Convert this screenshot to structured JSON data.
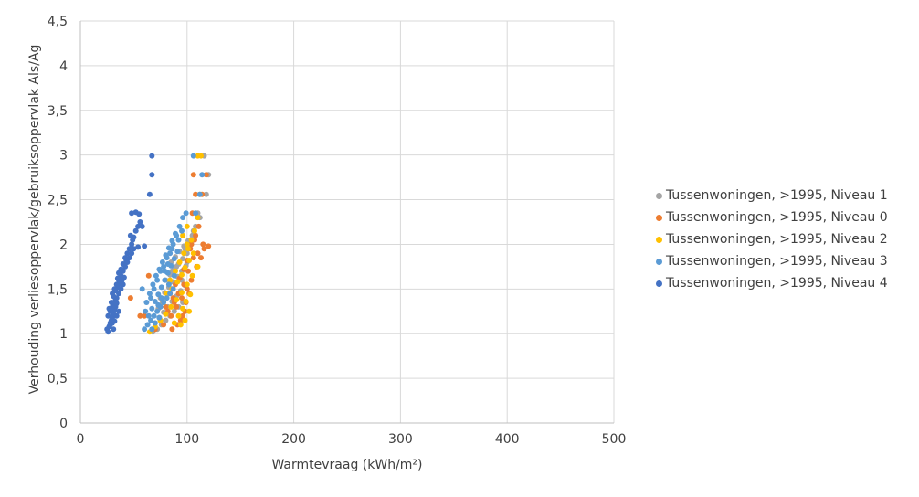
{
  "chart_data": {
    "type": "scatter",
    "xlabel": "Warmtevraag (kWh/m²)",
    "ylabel": "Verhouding verliesoppervlak/gebruiksoppervlak Als/Ag",
    "xlim": [
      0,
      500
    ],
    "ylim": [
      0,
      4.5
    ],
    "xticks": [
      "0",
      "100",
      "200",
      "300",
      "400",
      "500"
    ],
    "yticks": [
      "0",
      "0,5",
      "1",
      "1,5",
      "2",
      "2,5",
      "3",
      "3,5",
      "4",
      "4,5"
    ],
    "grid": true,
    "legend_position": "right",
    "series": [
      {
        "name": "Tussenwoningen, >1995, Niveau 1",
        "color": "#a5a5a5",
        "points": [
          [
            68,
            1.02
          ],
          [
            72,
            1.05
          ],
          [
            76,
            1.1
          ],
          [
            80,
            1.15
          ],
          [
            84,
            1.2
          ],
          [
            88,
            1.25
          ],
          [
            92,
            1.3
          ],
          [
            96,
            1.35
          ],
          [
            70,
            1.12
          ],
          [
            74,
            1.18
          ],
          [
            78,
            1.24
          ],
          [
            82,
            1.3
          ],
          [
            86,
            1.36
          ],
          [
            90,
            1.42
          ],
          [
            94,
            1.48
          ],
          [
            98,
            1.54
          ],
          [
            75,
            1.4
          ],
          [
            79,
            1.46
          ],
          [
            83,
            1.52
          ],
          [
            87,
            1.58
          ],
          [
            91,
            1.64
          ],
          [
            95,
            1.7
          ],
          [
            99,
            1.76
          ],
          [
            80,
            1.6
          ],
          [
            84,
            1.66
          ],
          [
            88,
            1.72
          ],
          [
            92,
            1.78
          ],
          [
            96,
            1.84
          ],
          [
            100,
            1.9
          ],
          [
            85,
            1.8
          ],
          [
            89,
            1.86
          ],
          [
            93,
            1.92
          ],
          [
            97,
            1.98
          ],
          [
            101,
            2.04
          ],
          [
            105,
            2.1
          ],
          [
            108,
            2.2
          ],
          [
            110,
            2.35
          ],
          [
            118,
            2.56
          ],
          [
            120,
            2.78
          ],
          [
            116,
            2.99
          ],
          [
            103,
            2.05
          ],
          [
            98,
            1.95
          ],
          [
            106,
            2.15
          ],
          [
            112,
            2.3
          ],
          [
            90,
            1.75
          ],
          [
            86,
            1.7
          ],
          [
            77,
            1.35
          ],
          [
            73,
            1.28
          ],
          [
            100,
            1.8
          ],
          [
            95,
            1.6
          ]
        ]
      },
      {
        "name": "Tussenwoningen, >1995, Niveau 0",
        "color": "#ed7d31",
        "points": [
          [
            56,
            1.2
          ],
          [
            60,
            1.2
          ],
          [
            47,
            1.4
          ],
          [
            64,
            1.65
          ],
          [
            70,
            1.05
          ],
          [
            78,
            1.1
          ],
          [
            85,
            1.2
          ],
          [
            90,
            1.3
          ],
          [
            95,
            1.4
          ],
          [
            100,
            1.5
          ],
          [
            104,
            1.6
          ],
          [
            82,
            1.25
          ],
          [
            88,
            1.35
          ],
          [
            92,
            1.45
          ],
          [
            97,
            1.55
          ],
          [
            101,
            1.7
          ],
          [
            106,
            1.85
          ],
          [
            110,
            1.9
          ],
          [
            115,
            2.0
          ],
          [
            103,
            1.95
          ],
          [
            108,
            2.1
          ],
          [
            111,
            2.2
          ],
          [
            105,
            2.35
          ],
          [
            108,
            2.56
          ],
          [
            106,
            2.78
          ],
          [
            118,
            2.78
          ],
          [
            114,
            2.56
          ],
          [
            120,
            1.98
          ],
          [
            94,
            1.15
          ],
          [
            98,
            1.25
          ],
          [
            99,
            1.35
          ],
          [
            102,
            1.45
          ],
          [
            86,
            1.05
          ],
          [
            91,
            1.1
          ],
          [
            96,
            1.2
          ],
          [
            84,
            1.45
          ],
          [
            89,
            1.55
          ],
          [
            93,
            1.62
          ],
          [
            97,
            1.72
          ],
          [
            100,
            1.82
          ],
          [
            104,
            2.0
          ],
          [
            107,
            2.05
          ],
          [
            75,
            1.15
          ],
          [
            80,
            1.3
          ],
          [
            87,
            1.4
          ],
          [
            113,
            1.85
          ],
          [
            109,
            1.75
          ],
          [
            116,
            1.95
          ]
        ]
      },
      {
        "name": "Tussenwoningen, >1995, Niveau 2",
        "color": "#ffc000",
        "points": [
          [
            65,
            1.02
          ],
          [
            70,
            1.08
          ],
          [
            75,
            1.15
          ],
          [
            80,
            1.22
          ],
          [
            85,
            1.3
          ],
          [
            90,
            1.38
          ],
          [
            95,
            1.46
          ],
          [
            100,
            1.55
          ],
          [
            105,
            1.65
          ],
          [
            110,
            1.75
          ],
          [
            88,
            1.12
          ],
          [
            92,
            1.2
          ],
          [
            96,
            1.28
          ],
          [
            99,
            1.36
          ],
          [
            103,
            1.44
          ],
          [
            86,
            1.5
          ],
          [
            91,
            1.58
          ],
          [
            95,
            1.66
          ],
          [
            98,
            1.74
          ],
          [
            102,
            1.82
          ],
          [
            106,
            1.9
          ],
          [
            101,
            1.95
          ],
          [
            104,
            2.05
          ],
          [
            107,
            2.15
          ],
          [
            100,
            2.2
          ],
          [
            110,
            2.3
          ],
          [
            112,
            2.56
          ],
          [
            110,
            2.99
          ],
          [
            113,
            2.99
          ],
          [
            97,
            1.9
          ],
          [
            93,
            1.8
          ],
          [
            89,
            1.7
          ],
          [
            84,
            1.6
          ],
          [
            81,
            1.45
          ],
          [
            78,
            1.35
          ],
          [
            94,
            1.1
          ],
          [
            98,
            1.15
          ],
          [
            102,
            1.25
          ],
          [
            100,
            2.0
          ],
          [
            96,
            2.1
          ]
        ]
      },
      {
        "name": "Tussenwoningen, >1995, Niveau 3",
        "color": "#5b9bd5",
        "points": [
          [
            60,
            1.05
          ],
          [
            63,
            1.1
          ],
          [
            66,
            1.15
          ],
          [
            69,
            1.2
          ],
          [
            72,
            1.25
          ],
          [
            75,
            1.3
          ],
          [
            78,
            1.35
          ],
          [
            81,
            1.4
          ],
          [
            84,
            1.45
          ],
          [
            87,
            1.5
          ],
          [
            64,
            1.2
          ],
          [
            67,
            1.28
          ],
          [
            70,
            1.36
          ],
          [
            73,
            1.44
          ],
          [
            76,
            1.52
          ],
          [
            79,
            1.6
          ],
          [
            82,
            1.68
          ],
          [
            85,
            1.76
          ],
          [
            88,
            1.84
          ],
          [
            91,
            1.92
          ],
          [
            62,
            1.35
          ],
          [
            65,
            1.45
          ],
          [
            68,
            1.55
          ],
          [
            71,
            1.65
          ],
          [
            74,
            1.72
          ],
          [
            77,
            1.8
          ],
          [
            80,
            1.88
          ],
          [
            83,
            1.96
          ],
          [
            86,
            2.04
          ],
          [
            89,
            2.12
          ],
          [
            72,
            1.6
          ],
          [
            75,
            1.7
          ],
          [
            78,
            1.75
          ],
          [
            81,
            1.85
          ],
          [
            84,
            1.9
          ],
          [
            87,
            2.0
          ],
          [
            90,
            2.1
          ],
          [
            93,
            2.2
          ],
          [
            96,
            2.3
          ],
          [
            99,
            2.35
          ],
          [
            108,
            2.35
          ],
          [
            112,
            2.56
          ],
          [
            114,
            2.78
          ],
          [
            106,
            2.99
          ],
          [
            70,
            1.12
          ],
          [
            67,
            1.05
          ],
          [
            74,
            1.18
          ],
          [
            61,
            1.25
          ],
          [
            66,
            1.4
          ],
          [
            69,
            1.5
          ],
          [
            79,
            1.7
          ],
          [
            82,
            1.78
          ],
          [
            92,
            2.05
          ],
          [
            95,
            2.15
          ],
          [
            86,
            1.95
          ],
          [
            76,
            1.4
          ],
          [
            73,
            1.32
          ],
          [
            58,
            1.5
          ],
          [
            83,
            1.55
          ],
          [
            88,
            1.65
          ]
        ]
      },
      {
        "name": "Tussenwoningen, >1995, Niveau 4",
        "color": "#4472c4",
        "points": [
          [
            25,
            1.05
          ],
          [
            26,
            1.02
          ],
          [
            27,
            1.08
          ],
          [
            28,
            1.12
          ],
          [
            29,
            1.15
          ],
          [
            30,
            1.18
          ],
          [
            31,
            1.22
          ],
          [
            32,
            1.26
          ],
          [
            33,
            1.3
          ],
          [
            34,
            1.34
          ],
          [
            26,
            1.2
          ],
          [
            28,
            1.25
          ],
          [
            30,
            1.3
          ],
          [
            32,
            1.35
          ],
          [
            34,
            1.4
          ],
          [
            36,
            1.45
          ],
          [
            38,
            1.5
          ],
          [
            40,
            1.55
          ],
          [
            28,
            1.1
          ],
          [
            30,
            1.12
          ],
          [
            32,
            1.14
          ],
          [
            27,
            1.28
          ],
          [
            29,
            1.35
          ],
          [
            31,
            1.42
          ],
          [
            33,
            1.48
          ],
          [
            35,
            1.52
          ],
          [
            37,
            1.56
          ],
          [
            39,
            1.6
          ],
          [
            30,
            1.45
          ],
          [
            32,
            1.5
          ],
          [
            34,
            1.55
          ],
          [
            36,
            1.6
          ],
          [
            38,
            1.65
          ],
          [
            40,
            1.7
          ],
          [
            42,
            1.75
          ],
          [
            44,
            1.8
          ],
          [
            46,
            1.85
          ],
          [
            48,
            1.9
          ],
          [
            50,
            1.95
          ],
          [
            36,
            1.68
          ],
          [
            38,
            1.72
          ],
          [
            40,
            1.78
          ],
          [
            42,
            1.85
          ],
          [
            44,
            1.9
          ],
          [
            46,
            1.95
          ],
          [
            48,
            2.0
          ],
          [
            50,
            2.08
          ],
          [
            52,
            2.15
          ],
          [
            54,
            2.2
          ],
          [
            56,
            2.25
          ],
          [
            47,
            2.1
          ],
          [
            49,
            2.05
          ],
          [
            48,
            2.35
          ],
          [
            52,
            2.36
          ],
          [
            55,
            2.34
          ],
          [
            58,
            2.2
          ],
          [
            54,
            1.97
          ],
          [
            60,
            1.98
          ],
          [
            65,
            2.56
          ],
          [
            67,
            2.78
          ],
          [
            67,
            2.99
          ],
          [
            34,
            1.2
          ],
          [
            36,
            1.25
          ],
          [
            31,
            1.05
          ],
          [
            33,
            1.38
          ],
          [
            35,
            1.62
          ],
          [
            41,
            1.63
          ],
          [
            43,
            1.82
          ]
        ]
      }
    ]
  }
}
